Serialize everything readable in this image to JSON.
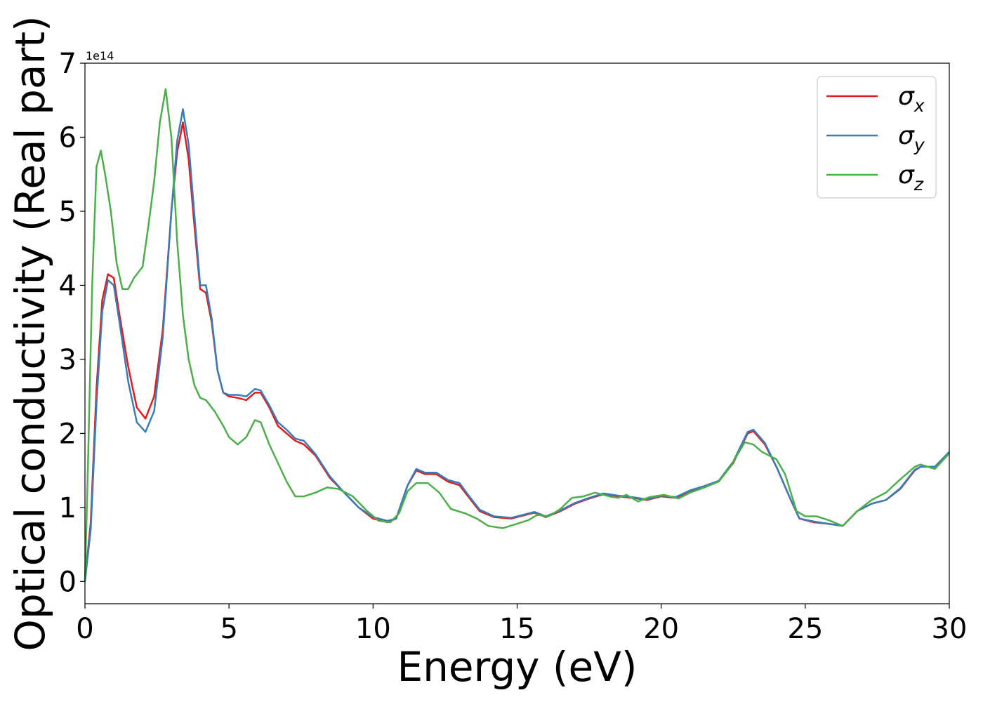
{
  "chart_data": {
    "type": "line",
    "title": "",
    "xlabel": "Energy (eV)",
    "ylabel": "Optical conductivity (Real part)",
    "y_offset_label": "1e14",
    "xlim": [
      0,
      30
    ],
    "ylim": [
      -0.3,
      7
    ],
    "xticks": [
      0,
      5,
      10,
      15,
      20,
      25,
      30
    ],
    "yticks": [
      0,
      1,
      2,
      3,
      4,
      5,
      6,
      7
    ],
    "grid": false,
    "legend_position": "top-right",
    "series": [
      {
        "name": "σx",
        "symbol": "σ",
        "subscript": "x",
        "color": "#e41a1c",
        "points": [
          [
            0,
            0
          ],
          [
            0.2,
            0.8
          ],
          [
            0.4,
            2.6
          ],
          [
            0.6,
            3.8
          ],
          [
            0.8,
            4.15
          ],
          [
            1.0,
            4.1
          ],
          [
            1.2,
            3.6
          ],
          [
            1.5,
            2.9
          ],
          [
            1.8,
            2.35
          ],
          [
            2.1,
            2.2
          ],
          [
            2.4,
            2.5
          ],
          [
            2.7,
            3.4
          ],
          [
            3.0,
            5.0
          ],
          [
            3.2,
            5.8
          ],
          [
            3.4,
            6.2
          ],
          [
            3.6,
            5.7
          ],
          [
            3.8,
            4.8
          ],
          [
            4.0,
            3.95
          ],
          [
            4.2,
            3.9
          ],
          [
            4.4,
            3.5
          ],
          [
            4.6,
            2.85
          ],
          [
            4.8,
            2.55
          ],
          [
            5.0,
            2.5
          ],
          [
            5.3,
            2.48
          ],
          [
            5.6,
            2.45
          ],
          [
            5.9,
            2.55
          ],
          [
            6.1,
            2.55
          ],
          [
            6.4,
            2.35
          ],
          [
            6.7,
            2.1
          ],
          [
            7.0,
            2.0
          ],
          [
            7.3,
            1.9
          ],
          [
            7.6,
            1.85
          ],
          [
            8.0,
            1.7
          ],
          [
            8.5,
            1.4
          ],
          [
            9.0,
            1.2
          ],
          [
            9.5,
            1.0
          ],
          [
            10.0,
            0.85
          ],
          [
            10.5,
            0.8
          ],
          [
            10.8,
            0.85
          ],
          [
            11.2,
            1.3
          ],
          [
            11.5,
            1.5
          ],
          [
            11.8,
            1.45
          ],
          [
            12.2,
            1.45
          ],
          [
            12.6,
            1.35
          ],
          [
            13.0,
            1.3
          ],
          [
            13.3,
            1.15
          ],
          [
            13.7,
            0.95
          ],
          [
            14.2,
            0.87
          ],
          [
            14.8,
            0.85
          ],
          [
            15.3,
            0.9
          ],
          [
            15.6,
            0.93
          ],
          [
            16.0,
            0.87
          ],
          [
            16.5,
            0.95
          ],
          [
            17.0,
            1.05
          ],
          [
            17.5,
            1.12
          ],
          [
            18.0,
            1.18
          ],
          [
            18.5,
            1.15
          ],
          [
            19.0,
            1.13
          ],
          [
            19.5,
            1.1
          ],
          [
            20.0,
            1.15
          ],
          [
            20.5,
            1.13
          ],
          [
            21.0,
            1.22
          ],
          [
            21.5,
            1.28
          ],
          [
            22.0,
            1.35
          ],
          [
            22.5,
            1.6
          ],
          [
            23.0,
            2.0
          ],
          [
            23.2,
            2.03
          ],
          [
            23.6,
            1.85
          ],
          [
            24.0,
            1.55
          ],
          [
            24.5,
            1.1
          ],
          [
            24.8,
            0.85
          ],
          [
            25.3,
            0.8
          ],
          [
            25.8,
            0.78
          ],
          [
            26.3,
            0.75
          ],
          [
            26.8,
            0.95
          ],
          [
            27.3,
            1.05
          ],
          [
            27.8,
            1.1
          ],
          [
            28.3,
            1.25
          ],
          [
            28.8,
            1.5
          ],
          [
            29.0,
            1.55
          ],
          [
            29.5,
            1.55
          ],
          [
            30.0,
            1.75
          ]
        ]
      },
      {
        "name": "σy",
        "symbol": "σ",
        "subscript": "y",
        "color": "#377eb8",
        "points": [
          [
            0,
            0
          ],
          [
            0.2,
            0.7
          ],
          [
            0.4,
            2.4
          ],
          [
            0.6,
            3.65
          ],
          [
            0.8,
            4.07
          ],
          [
            1.0,
            4.0
          ],
          [
            1.2,
            3.5
          ],
          [
            1.5,
            2.7
          ],
          [
            1.8,
            2.15
          ],
          [
            2.1,
            2.02
          ],
          [
            2.4,
            2.3
          ],
          [
            2.7,
            3.3
          ],
          [
            3.0,
            5.0
          ],
          [
            3.2,
            5.95
          ],
          [
            3.4,
            6.38
          ],
          [
            3.6,
            5.9
          ],
          [
            3.8,
            4.95
          ],
          [
            4.0,
            4.0
          ],
          [
            4.2,
            4.0
          ],
          [
            4.4,
            3.55
          ],
          [
            4.6,
            2.85
          ],
          [
            4.8,
            2.55
          ],
          [
            5.0,
            2.52
          ],
          [
            5.3,
            2.52
          ],
          [
            5.6,
            2.5
          ],
          [
            5.9,
            2.6
          ],
          [
            6.1,
            2.58
          ],
          [
            6.4,
            2.38
          ],
          [
            6.7,
            2.15
          ],
          [
            7.0,
            2.05
          ],
          [
            7.3,
            1.93
          ],
          [
            7.6,
            1.9
          ],
          [
            8.0,
            1.72
          ],
          [
            8.5,
            1.42
          ],
          [
            9.0,
            1.2
          ],
          [
            9.5,
            1.0
          ],
          [
            10.0,
            0.87
          ],
          [
            10.5,
            0.82
          ],
          [
            10.8,
            0.85
          ],
          [
            11.2,
            1.3
          ],
          [
            11.5,
            1.52
          ],
          [
            11.8,
            1.47
          ],
          [
            12.2,
            1.47
          ],
          [
            12.6,
            1.37
          ],
          [
            13.0,
            1.33
          ],
          [
            13.3,
            1.17
          ],
          [
            13.7,
            0.97
          ],
          [
            14.2,
            0.88
          ],
          [
            14.8,
            0.86
          ],
          [
            15.3,
            0.91
          ],
          [
            15.6,
            0.94
          ],
          [
            16.0,
            0.88
          ],
          [
            16.5,
            0.96
          ],
          [
            17.0,
            1.06
          ],
          [
            17.5,
            1.13
          ],
          [
            18.0,
            1.19
          ],
          [
            18.5,
            1.16
          ],
          [
            19.0,
            1.14
          ],
          [
            19.5,
            1.11
          ],
          [
            20.0,
            1.16
          ],
          [
            20.5,
            1.14
          ],
          [
            21.0,
            1.23
          ],
          [
            21.5,
            1.29
          ],
          [
            22.0,
            1.36
          ],
          [
            22.5,
            1.62
          ],
          [
            23.0,
            2.02
          ],
          [
            23.2,
            2.05
          ],
          [
            23.6,
            1.87
          ],
          [
            24.0,
            1.55
          ],
          [
            24.5,
            1.1
          ],
          [
            24.8,
            0.85
          ],
          [
            25.3,
            0.81
          ],
          [
            25.8,
            0.78
          ],
          [
            26.3,
            0.75
          ],
          [
            26.8,
            0.95
          ],
          [
            27.3,
            1.05
          ],
          [
            27.8,
            1.1
          ],
          [
            28.3,
            1.26
          ],
          [
            28.8,
            1.51
          ],
          [
            29.0,
            1.55
          ],
          [
            29.5,
            1.55
          ],
          [
            30.0,
            1.75
          ]
        ]
      },
      {
        "name": "σz",
        "symbol": "σ",
        "subscript": "z",
        "color": "#4daf4a",
        "points": [
          [
            0,
            0
          ],
          [
            0.1,
            1.5
          ],
          [
            0.25,
            4.0
          ],
          [
            0.4,
            5.6
          ],
          [
            0.55,
            5.82
          ],
          [
            0.7,
            5.5
          ],
          [
            0.9,
            5.0
          ],
          [
            1.1,
            4.3
          ],
          [
            1.3,
            3.95
          ],
          [
            1.5,
            3.95
          ],
          [
            1.7,
            4.1
          ],
          [
            2.0,
            4.25
          ],
          [
            2.2,
            4.8
          ],
          [
            2.4,
            5.4
          ],
          [
            2.6,
            6.2
          ],
          [
            2.8,
            6.65
          ],
          [
            3.0,
            6.0
          ],
          [
            3.2,
            4.6
          ],
          [
            3.4,
            3.6
          ],
          [
            3.6,
            3.0
          ],
          [
            3.8,
            2.65
          ],
          [
            4.0,
            2.48
          ],
          [
            4.2,
            2.45
          ],
          [
            4.5,
            2.3
          ],
          [
            4.8,
            2.1
          ],
          [
            5.0,
            1.95
          ],
          [
            5.3,
            1.85
          ],
          [
            5.6,
            1.95
          ],
          [
            5.9,
            2.18
          ],
          [
            6.1,
            2.15
          ],
          [
            6.4,
            1.85
          ],
          [
            6.7,
            1.6
          ],
          [
            7.0,
            1.35
          ],
          [
            7.3,
            1.15
          ],
          [
            7.6,
            1.15
          ],
          [
            8.0,
            1.2
          ],
          [
            8.4,
            1.27
          ],
          [
            8.8,
            1.25
          ],
          [
            9.3,
            1.15
          ],
          [
            9.8,
            0.95
          ],
          [
            10.2,
            0.82
          ],
          [
            10.6,
            0.8
          ],
          [
            10.9,
            0.92
          ],
          [
            11.2,
            1.22
          ],
          [
            11.5,
            1.33
          ],
          [
            11.9,
            1.33
          ],
          [
            12.3,
            1.2
          ],
          [
            12.7,
            0.98
          ],
          [
            13.2,
            0.92
          ],
          [
            13.6,
            0.85
          ],
          [
            14.0,
            0.75
          ],
          [
            14.5,
            0.72
          ],
          [
            15.0,
            0.78
          ],
          [
            15.4,
            0.83
          ],
          [
            15.7,
            0.9
          ],
          [
            16.1,
            0.88
          ],
          [
            16.5,
            0.98
          ],
          [
            16.9,
            1.13
          ],
          [
            17.3,
            1.15
          ],
          [
            17.7,
            1.2
          ],
          [
            18.2,
            1.15
          ],
          [
            18.5,
            1.13
          ],
          [
            18.8,
            1.17
          ],
          [
            19.2,
            1.08
          ],
          [
            19.6,
            1.14
          ],
          [
            20.1,
            1.17
          ],
          [
            20.6,
            1.12
          ],
          [
            21.0,
            1.2
          ],
          [
            21.5,
            1.27
          ],
          [
            22.0,
            1.35
          ],
          [
            22.4,
            1.55
          ],
          [
            22.9,
            1.88
          ],
          [
            23.2,
            1.85
          ],
          [
            23.5,
            1.75
          ],
          [
            24.0,
            1.65
          ],
          [
            24.3,
            1.45
          ],
          [
            24.7,
            0.95
          ],
          [
            25.0,
            0.88
          ],
          [
            25.4,
            0.88
          ],
          [
            25.8,
            0.83
          ],
          [
            26.3,
            0.75
          ],
          [
            26.8,
            0.95
          ],
          [
            27.3,
            1.1
          ],
          [
            27.8,
            1.2
          ],
          [
            28.3,
            1.38
          ],
          [
            28.8,
            1.55
          ],
          [
            29.0,
            1.58
          ],
          [
            29.5,
            1.52
          ],
          [
            30.0,
            1.73
          ]
        ]
      }
    ]
  }
}
